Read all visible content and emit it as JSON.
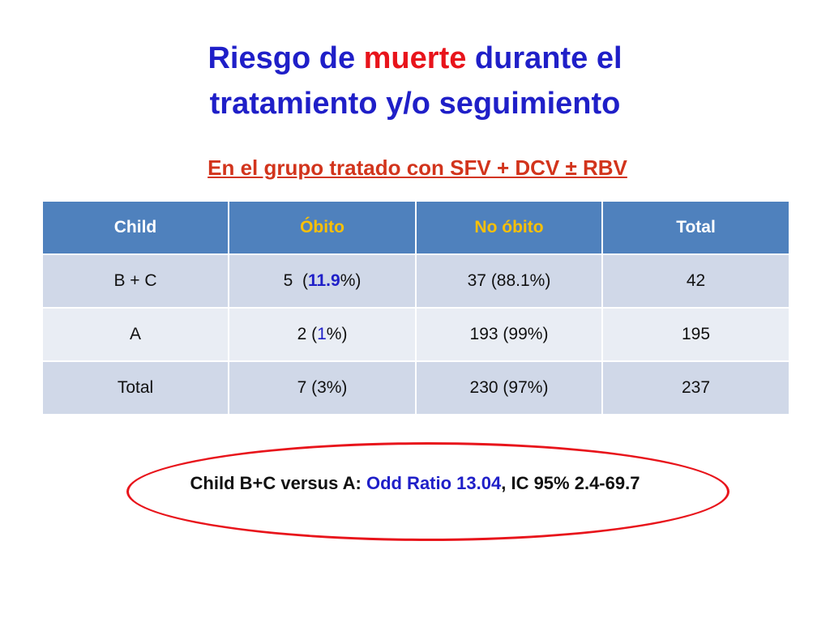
{
  "title": {
    "part1": "Riesgo de ",
    "highlight": "muerte",
    "part2": " durante el",
    "line2": "tratamiento y/o seguimiento"
  },
  "subtitle": "En el grupo tratado con SFV + DCV ± RBV",
  "table": {
    "headers": [
      "Child",
      "Óbito",
      "No óbito",
      "Total"
    ],
    "rows": [
      {
        "child": "B + C",
        "obito_count": "5",
        "obito_open": "  (",
        "obito_pct": "11.9",
        "obito_close": "%)",
        "no_obito": "37 (88.1%)",
        "total": "42"
      },
      {
        "child": "A",
        "obito_count": "2",
        "obito_open": " (",
        "obito_pct": "1",
        "obito_close": "%)",
        "no_obito": "193 (99%)",
        "total": "195"
      },
      {
        "child": "Total",
        "obito": "7 (3%)",
        "no_obito": "230 (97%)",
        "total": "237"
      }
    ]
  },
  "odds": {
    "prefix": "Child B+C versus A: ",
    "highlight": "Odd Ratio 13.04",
    "suffix": ", IC 95% 2.4-69.7"
  },
  "colors": {
    "title_blue": "#1f1fc8",
    "title_red": "#e8141b",
    "subtitle": "#d2341c",
    "header_bg": "#4f81bd",
    "header_orange": "#fbc003",
    "row_dark": "#d0d8e8",
    "row_light": "#e9edf4",
    "ellipse": "#e8141b"
  }
}
